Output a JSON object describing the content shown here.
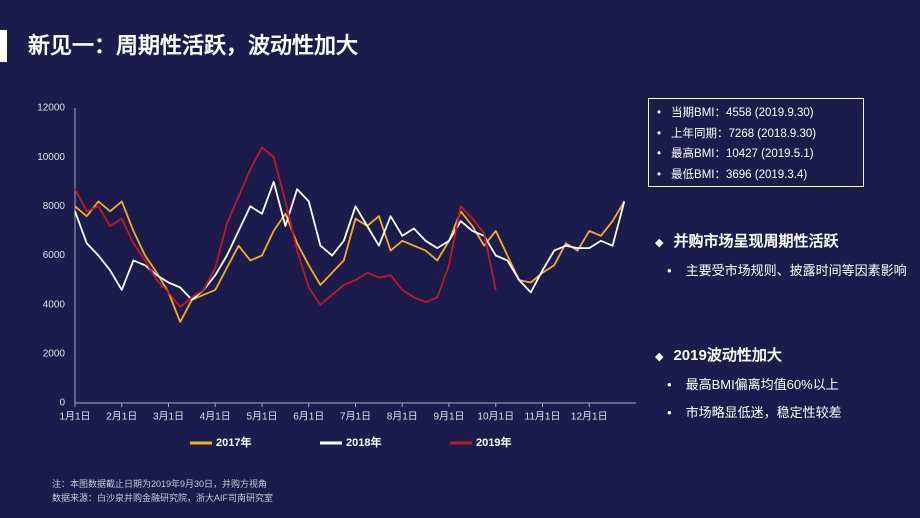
{
  "header": {
    "title": "新见一：周期性活跃，波动性加大"
  },
  "chart_data": {
    "type": "line",
    "categories": [
      "1月1日",
      null,
      null,
      null,
      "2月1日",
      null,
      null,
      null,
      "3月1日",
      null,
      null,
      null,
      "4月1日",
      null,
      null,
      null,
      "5月1日",
      null,
      null,
      null,
      "6月1日",
      null,
      null,
      null,
      "7月1日",
      null,
      null,
      null,
      "8月1日",
      null,
      null,
      null,
      "9月1日",
      null,
      null,
      null,
      "10月1日",
      null,
      null,
      null,
      "11月1日",
      null,
      null,
      null,
      "12月1日",
      null,
      null,
      null
    ],
    "series": [
      {
        "name": "2017年",
        "color": "#f0b020",
        "values": [
          8000,
          7600,
          8200,
          7800,
          8200,
          7000,
          6000,
          5300,
          4500,
          3300,
          4200,
          4400,
          4600,
          5500,
          6400,
          5800,
          6000,
          7000,
          7700,
          6500,
          5600,
          4800,
          5300,
          5800,
          7500,
          7200,
          7600,
          6200,
          6600,
          6400,
          6200,
          5800,
          6600,
          7800,
          7200,
          6400,
          7000,
          6000,
          5000,
          4900,
          5300,
          5600,
          6500,
          6200,
          7000,
          6800,
          7400,
          8200
        ]
      },
      {
        "name": "2018年",
        "color": "#ffffff",
        "values": [
          7800,
          6500,
          6000,
          5400,
          4600,
          5800,
          5600,
          5200,
          4900,
          4700,
          4200,
          4600,
          5200,
          6000,
          7000,
          8000,
          7700,
          9000,
          7200,
          8700,
          8200,
          6400,
          6000,
          6600,
          8000,
          7200,
          6400,
          7600,
          6800,
          7100,
          6600,
          6300,
          6600,
          7400,
          7000,
          6800,
          6000,
          5800,
          5000,
          4500,
          5400,
          6200,
          6400,
          6300,
          6300,
          6600,
          6400,
          8200
        ]
      },
      {
        "name": "2019年",
        "color": "#c0172a",
        "values": [
          8700,
          7800,
          8000,
          7200,
          7500,
          6500,
          5800,
          5000,
          4500,
          3900,
          4300,
          4600,
          5500,
          7300,
          8400,
          9500,
          10400,
          10000,
          8200,
          6200,
          4700,
          4000,
          4400,
          4800,
          5000,
          5300,
          5100,
          5200,
          4600,
          4300,
          4100,
          4300,
          5600,
          8000,
          7500,
          6900,
          4600,
          null,
          null,
          null,
          null,
          null,
          null,
          null,
          null,
          null,
          null,
          null
        ]
      }
    ],
    "ylim": [
      0,
      12000
    ],
    "yticks": [
      0,
      2000,
      4000,
      6000,
      8000,
      10000,
      12000
    ]
  },
  "info_box": [
    "当期BMI：4558 (2019.9.30)",
    "上年同期：7268 (2018.9.30)",
    "最高BMI：10427 (2019.5.1)",
    "最低BMI：3696 (2019.3.4)"
  ],
  "sections": [
    {
      "heading": "并购市场呈现周期性活跃",
      "bullets": [
        "主要受市场规则、披露时间等因素影响"
      ]
    },
    {
      "heading": "2019波动性加大",
      "bullets": [
        "最高BMI偏离均值60%以上",
        "市场略显低迷，稳定性较差"
      ]
    }
  ],
  "footnotes": [
    "注：本图数据截止日期为2019年9月30日，并购方视角",
    "数据来源：白沙泉并购金融研究院，浙大AIF司南研究室"
  ]
}
